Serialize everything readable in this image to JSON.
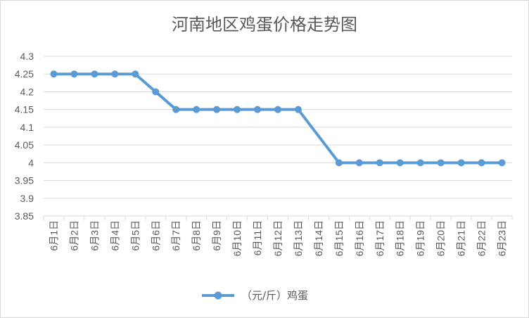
{
  "chart_data": {
    "type": "line",
    "title": "河南地区鸡蛋价格走势图",
    "categories": [
      "6月1日",
      "6月2日",
      "6月3日",
      "6月4日",
      "6月5日",
      "6月6日",
      "6月7日",
      "6月8日",
      "6月9日",
      "6月10日",
      "6月11日",
      "6月12日",
      "6月13日",
      "6月14日",
      "6月15日",
      "6月16日",
      "6月17日",
      "6月18日",
      "6月19日",
      "6月20日",
      "6月21日",
      "6月22日",
      "6月23日"
    ],
    "series": [
      {
        "name": "（元/斤）鸡蛋",
        "values": [
          4.25,
          4.25,
          4.25,
          4.25,
          4.25,
          4.2,
          4.15,
          4.15,
          4.15,
          4.15,
          4.15,
          4.15,
          4.15,
          null,
          4.0,
          4.0,
          4.0,
          4.0,
          4.0,
          4.0,
          4.0,
          4.0,
          4.0
        ],
        "color": "#5b9bd5"
      }
    ],
    "ylim": [
      3.85,
      4.3
    ],
    "yticks": [
      "3.85",
      "3.9",
      "3.95",
      "4",
      "4.05",
      "4.1",
      "4.15",
      "4.2",
      "4.25",
      "4.3"
    ],
    "xlabel": "",
    "ylabel": "",
    "grid": true,
    "legend_position": "bottom",
    "grid_color": "#d9d9d9",
    "text_color": "#595959"
  }
}
